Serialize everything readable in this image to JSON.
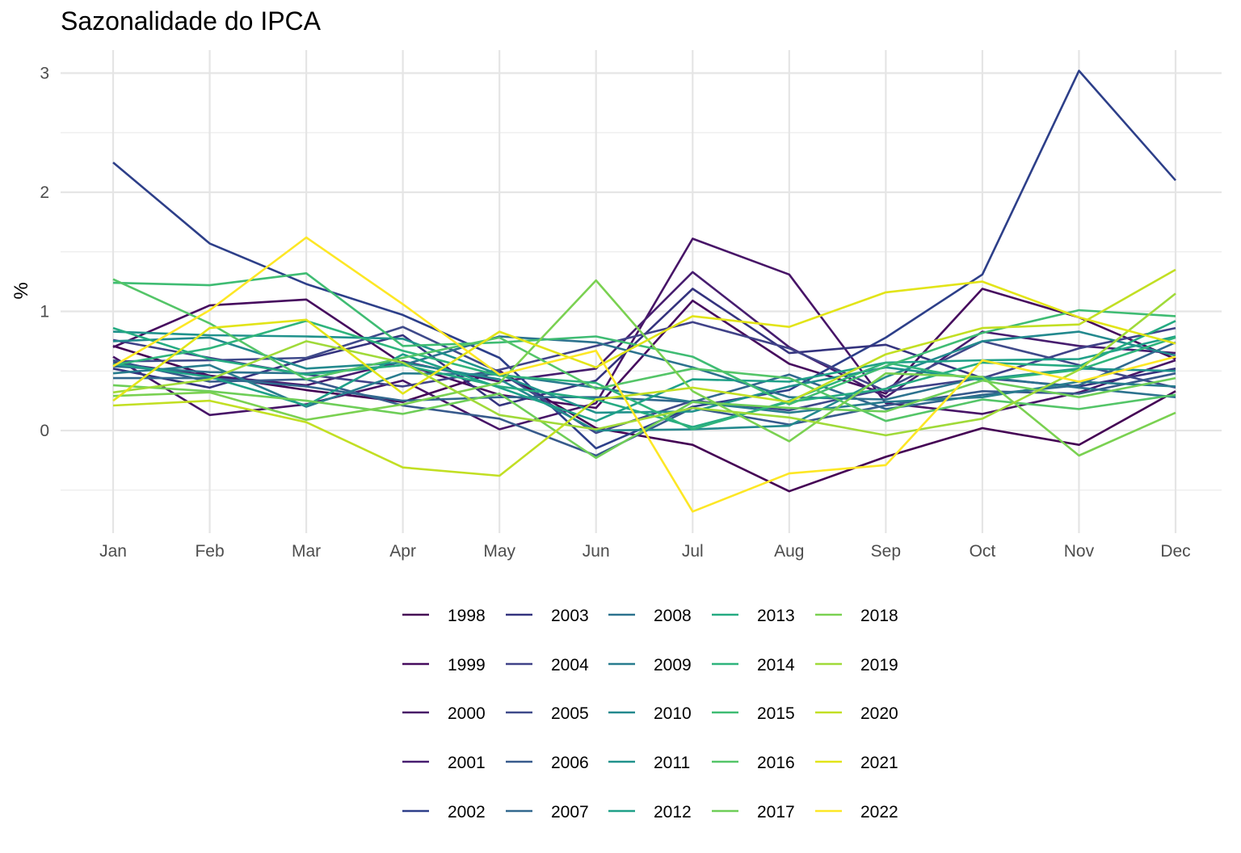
{
  "chart_data": {
    "type": "line",
    "title": "Sazonalidade do IPCA",
    "xlabel": "",
    "ylabel": "%",
    "ylim": [
      -0.8,
      3.2
    ],
    "yticks": [
      0,
      1,
      2,
      3
    ],
    "grid": true,
    "legend_position": "bottom",
    "categories": [
      "Jan",
      "Feb",
      "Mar",
      "Apr",
      "May",
      "Jun",
      "Jul",
      "Aug",
      "Sep",
      "Oct",
      "Nov",
      "Dec"
    ],
    "series": [
      {
        "name": "1998",
        "color": "#440154",
        "values": [
          0.71,
          0.46,
          0.34,
          0.24,
          0.5,
          0.02,
          -0.12,
          -0.51,
          -0.22,
          0.02,
          -0.12,
          0.33
        ]
      },
      {
        "name": "1999",
        "color": "#460B5E",
        "values": [
          0.7,
          1.05,
          1.1,
          0.56,
          0.3,
          0.19,
          1.09,
          0.56,
          0.31,
          1.19,
          0.95,
          0.6
        ]
      },
      {
        "name": "2000",
        "color": "#471467",
        "values": [
          0.62,
          0.13,
          0.22,
          0.42,
          0.01,
          0.23,
          1.61,
          1.31,
          0.23,
          0.14,
          0.32,
          0.59
        ]
      },
      {
        "name": "2001",
        "color": "#471D6F",
        "values": [
          0.57,
          0.46,
          0.38,
          0.58,
          0.41,
          0.52,
          1.33,
          0.7,
          0.28,
          0.83,
          0.71,
          0.65
        ]
      },
      {
        "name": "2002",
        "color": "#2D3F89",
        "values": [
          2.25,
          1.57,
          1.23,
          0.97,
          0.61,
          -0.15,
          0.2,
          0.34,
          0.78,
          1.31,
          3.02,
          2.1
        ]
      },
      {
        "name": "2003",
        "color": "#34337E",
        "values": [
          0.52,
          0.36,
          0.6,
          0.8,
          0.21,
          0.42,
          1.19,
          0.65,
          0.72,
          0.44,
          0.37,
          0.52
        ]
      },
      {
        "name": "2004",
        "color": "#404288",
        "values": [
          0.76,
          0.61,
          0.47,
          0.37,
          0.51,
          0.71,
          0.91,
          0.69,
          0.33,
          0.44,
          0.69,
          0.86
        ]
      },
      {
        "name": "2005",
        "color": "#3F4A8A",
        "values": [
          0.58,
          0.59,
          0.61,
          0.87,
          0.49,
          -0.02,
          0.25,
          0.17,
          0.35,
          0.75,
          0.55,
          0.36
        ]
      },
      {
        "name": "2006",
        "color": "#375A8C",
        "values": [
          0.59,
          0.41,
          0.43,
          0.21,
          0.1,
          -0.21,
          0.19,
          0.05,
          0.21,
          0.33,
          0.31,
          0.48
        ]
      },
      {
        "name": "2007",
        "color": "#31688E",
        "values": [
          0.44,
          0.44,
          0.37,
          0.25,
          0.28,
          0.28,
          0.24,
          0.47,
          0.18,
          0.3,
          0.38,
          0.74
        ]
      },
      {
        "name": "2008",
        "color": "#2C728E",
        "values": [
          0.54,
          0.49,
          0.48,
          0.55,
          0.79,
          0.74,
          0.53,
          0.28,
          0.26,
          0.45,
          0.36,
          0.28
        ]
      },
      {
        "name": "2009",
        "color": "#287C8E",
        "values": [
          0.48,
          0.55,
          0.2,
          0.48,
          0.47,
          0.36,
          0.24,
          0.15,
          0.24,
          0.28,
          0.41,
          0.37
        ]
      },
      {
        "name": "2010",
        "color": "#23898E",
        "values": [
          0.75,
          0.78,
          0.52,
          0.57,
          0.43,
          0.0,
          0.01,
          0.04,
          0.45,
          0.75,
          0.83,
          0.63
        ]
      },
      {
        "name": "2011",
        "color": "#20928C",
        "values": [
          0.83,
          0.8,
          0.79,
          0.77,
          0.47,
          0.15,
          0.16,
          0.37,
          0.53,
          0.43,
          0.52,
          0.5
        ]
      },
      {
        "name": "2012",
        "color": "#1FA088",
        "values": [
          0.56,
          0.45,
          0.21,
          0.64,
          0.36,
          0.08,
          0.43,
          0.41,
          0.57,
          0.59,
          0.6,
          0.79
        ]
      },
      {
        "name": "2013",
        "color": "#25AB82",
        "values": [
          0.86,
          0.6,
          0.47,
          0.55,
          0.37,
          0.26,
          0.03,
          0.24,
          0.35,
          0.57,
          0.54,
          0.92
        ]
      },
      {
        "name": "2014",
        "color": "#2FB47C",
        "values": [
          0.55,
          0.69,
          0.92,
          0.67,
          0.46,
          0.4,
          0.01,
          0.25,
          0.57,
          0.42,
          0.51,
          0.78
        ]
      },
      {
        "name": "2015",
        "color": "#3FBC73",
        "values": [
          1.24,
          1.22,
          1.32,
          0.71,
          0.74,
          0.79,
          0.62,
          0.22,
          0.54,
          0.82,
          1.01,
          0.96
        ]
      },
      {
        "name": "2016",
        "color": "#54C568",
        "values": [
          1.27,
          0.9,
          0.43,
          0.61,
          0.78,
          0.35,
          0.52,
          0.44,
          0.08,
          0.26,
          0.18,
          0.3
        ]
      },
      {
        "name": "2017",
        "color": "#6ECE58",
        "values": [
          0.38,
          0.33,
          0.25,
          0.14,
          0.31,
          -0.23,
          0.24,
          0.19,
          0.16,
          0.42,
          0.28,
          0.44
        ]
      },
      {
        "name": "2018",
        "color": "#7AD151",
        "values": [
          0.29,
          0.32,
          0.09,
          0.22,
          0.4,
          1.26,
          0.33,
          -0.09,
          0.48,
          0.45,
          -0.21,
          0.15
        ]
      },
      {
        "name": "2019",
        "color": "#A0DA39",
        "values": [
          0.32,
          0.43,
          0.75,
          0.57,
          0.13,
          0.01,
          0.19,
          0.11,
          -0.04,
          0.1,
          0.51,
          1.15
        ]
      },
      {
        "name": "2020",
        "color": "#C2DF23",
        "values": [
          0.21,
          0.25,
          0.07,
          -0.31,
          -0.38,
          0.26,
          0.36,
          0.24,
          0.64,
          0.86,
          0.89,
          1.35
        ]
      },
      {
        "name": "2021",
        "color": "#E2E418",
        "values": [
          0.25,
          0.86,
          0.93,
          0.31,
          0.83,
          0.53,
          0.96,
          0.87,
          1.16,
          1.25,
          0.95,
          0.73
        ]
      },
      {
        "name": "2022",
        "color": "#FDE725",
        "values": [
          0.54,
          1.01,
          1.62,
          1.06,
          0.47,
          0.67,
          -0.68,
          -0.36,
          -0.29,
          0.59,
          0.41,
          0.62
        ]
      }
    ]
  }
}
